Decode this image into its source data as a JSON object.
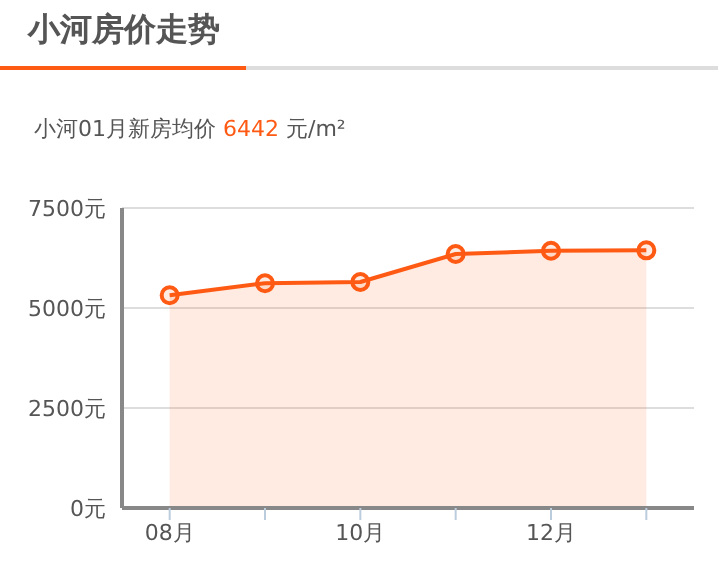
{
  "chart_data": {
    "type": "area",
    "title": "小河房价走势",
    "subtitle": "小河01月新房均价 6442 元/m²",
    "categories": [
      "08月",
      null,
      "10月",
      null,
      "12月",
      null
    ],
    "series": [
      {
        "color": "#ff5a14",
        "values": [
          5320,
          5620,
          5650,
          6350,
          6430,
          6442
        ]
      }
    ],
    "ylim": [
      0,
      7500
    ],
    "yticks": [
      {
        "value": 0,
        "label": "0元"
      },
      {
        "value": 2500,
        "label": "2500元"
      },
      {
        "value": 5000,
        "label": "5000元"
      },
      {
        "value": 7500,
        "label": "7500元"
      }
    ],
    "grid": "y",
    "legend": false,
    "marker": "circle",
    "line_style": "solid"
  }
}
